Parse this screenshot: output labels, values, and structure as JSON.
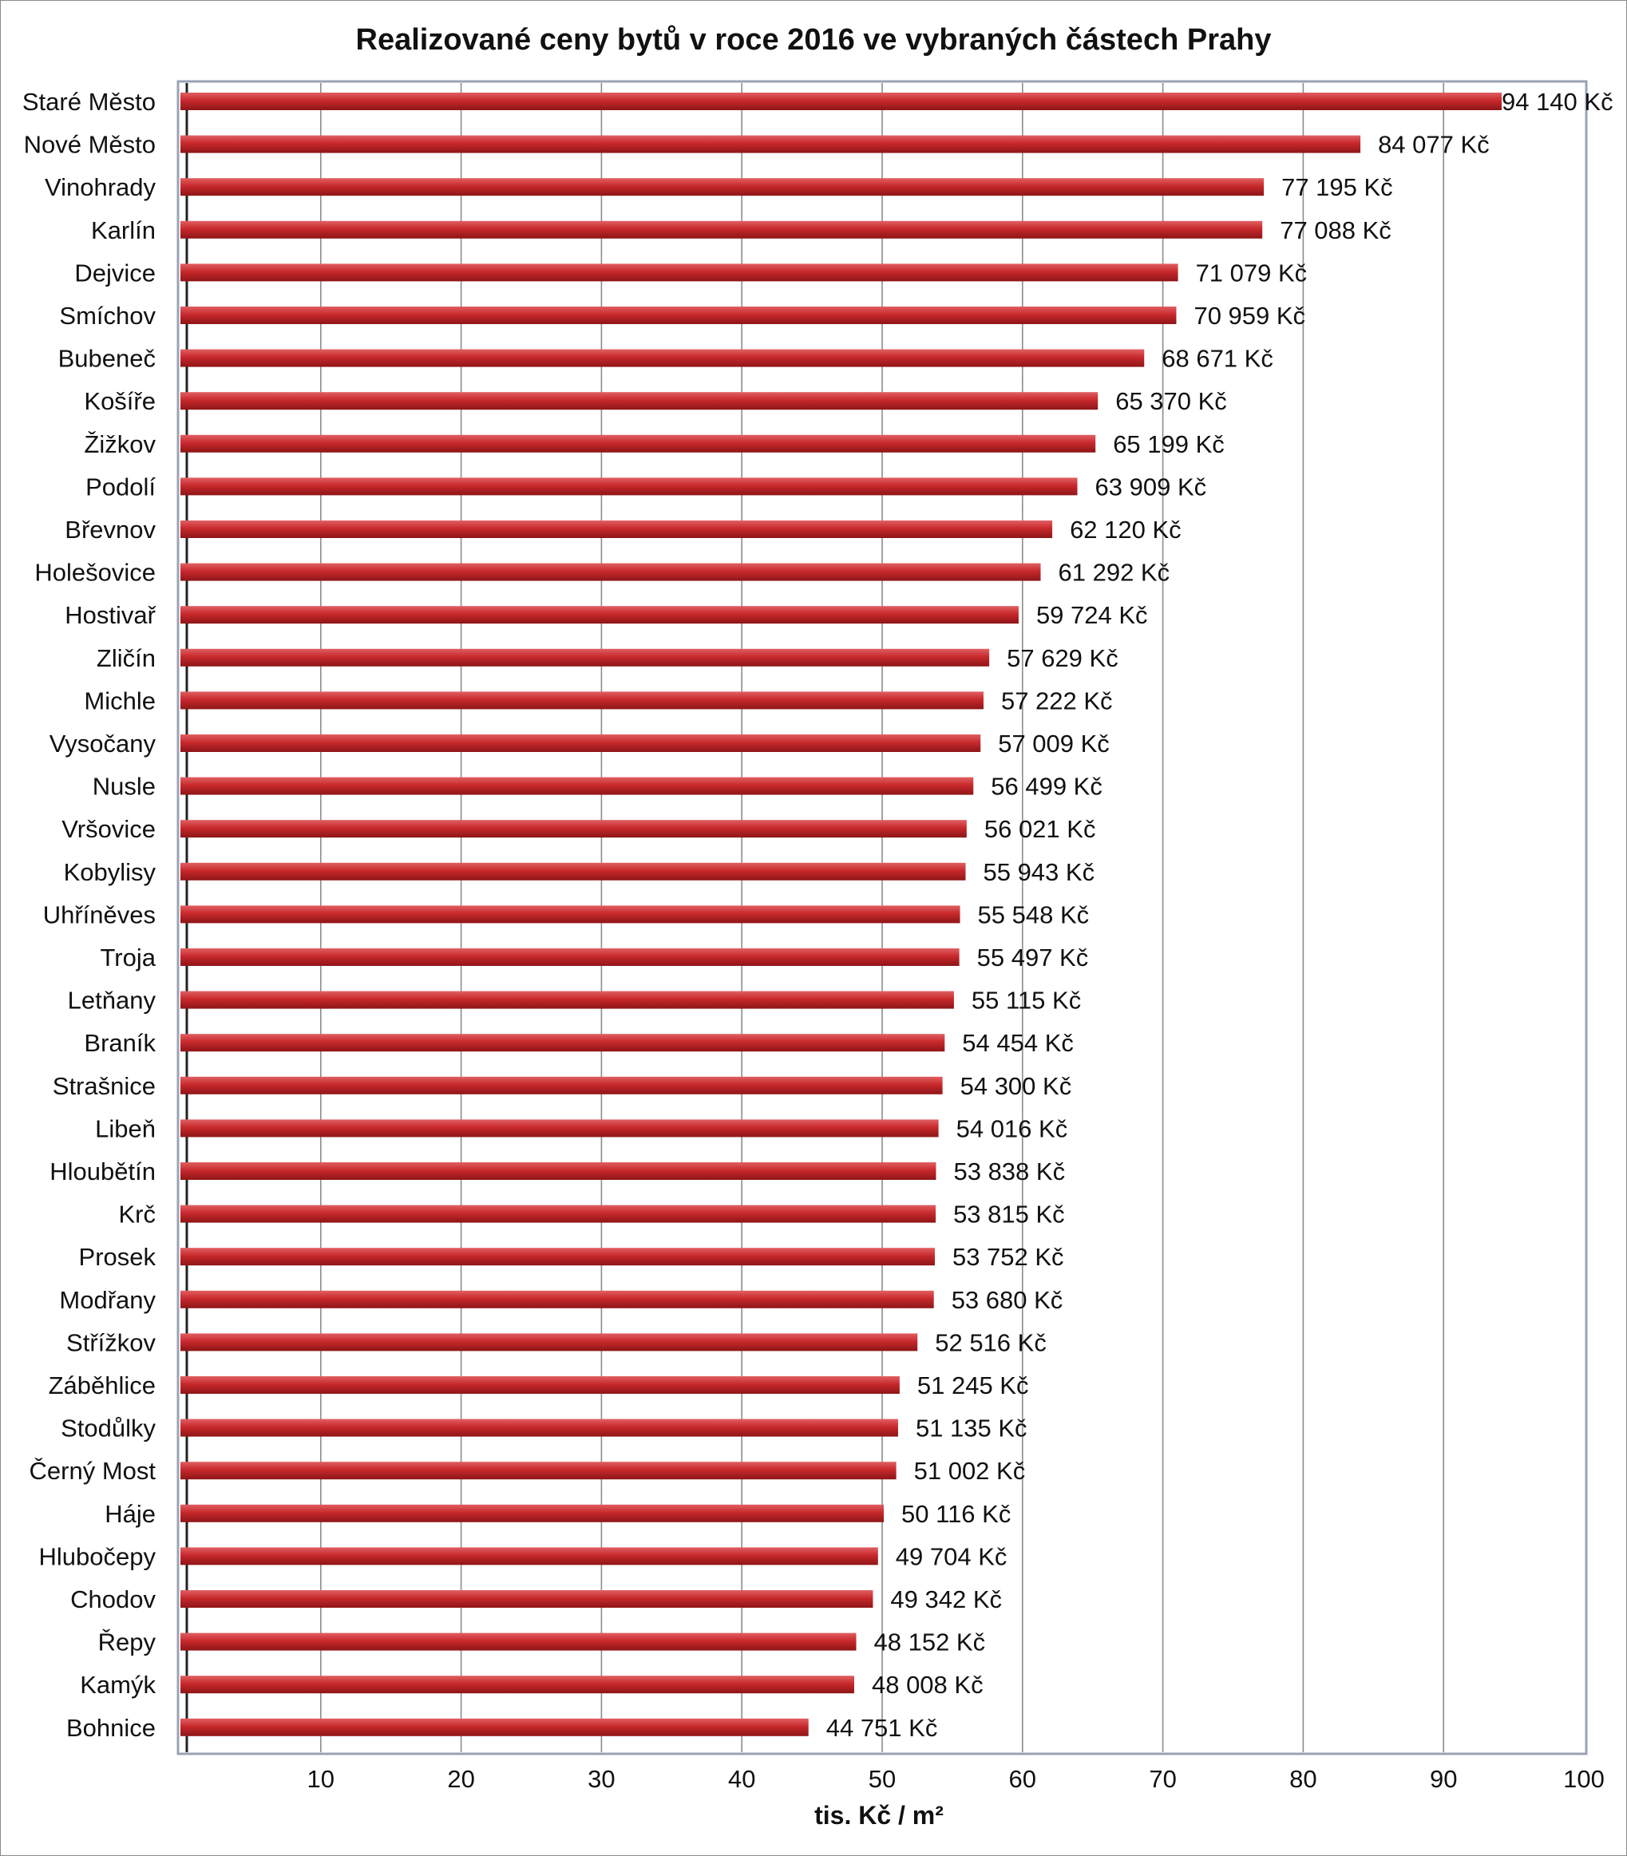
{
  "chart_data": {
    "type": "bar",
    "orientation": "horizontal",
    "title": "Realizované ceny bytů v roce 2016 ve vybraných částech Prahy",
    "xlabel": "tis. Kč / m²",
    "ylabel": "",
    "xlim": [
      0,
      100
    ],
    "x_ticks": [
      10,
      20,
      30,
      40,
      50,
      60,
      70,
      80,
      90,
      100
    ],
    "grid": "vertical",
    "bar_color": "#c0282b",
    "categories": [
      "Staré Město",
      "Nové Město",
      "Vinohrady",
      "Karlín",
      "Dejvice",
      "Smíchov",
      "Bubeneč",
      "Košíře",
      "Žižkov",
      "Podolí",
      "Břevnov",
      "Holešovice",
      "Hostivař",
      "Zličín",
      "Michle",
      "Vysočany",
      "Nusle",
      "Vršovice",
      "Kobylisy",
      "Uhříněves",
      "Troja",
      "Letňany",
      "Braník",
      "Strašnice",
      "Libeň",
      "Hloubětín",
      "Krč",
      "Prosek",
      "Modřany",
      "Střížkov",
      "Záběhlice",
      "Stodůlky",
      "Černý Most",
      "Háje",
      "Hlubočepy",
      "Chodov",
      "Řepy",
      "Kamýk",
      "Bohnice"
    ],
    "values": [
      94140,
      84077,
      77195,
      77088,
      71079,
      70959,
      68671,
      65370,
      65199,
      63909,
      62120,
      61292,
      59724,
      57629,
      57222,
      57009,
      56499,
      56021,
      55943,
      55548,
      55497,
      55115,
      54454,
      54300,
      54016,
      53838,
      53815,
      53752,
      53680,
      52516,
      51245,
      51135,
      51002,
      50116,
      49704,
      49342,
      48152,
      48008,
      44751
    ],
    "value_labels": [
      "94 140 Kč",
      "84 077 Kč",
      "77 195 Kč",
      "77 088 Kč",
      "71 079 Kč",
      "70 959 Kč",
      "68 671 Kč",
      "65 370 Kč",
      "65 199 Kč",
      "63 909 Kč",
      "62 120 Kč",
      "61 292 Kč",
      "59 724 Kč",
      "57 629 Kč",
      "57 222 Kč",
      "57 009 Kč",
      "56 499 Kč",
      "56 021 Kč",
      "55 943 Kč",
      "55 548 Kč",
      "55 497 Kč",
      "55 115 Kč",
      "54 454 Kč",
      "54 300 Kč",
      "54 016 Kč",
      "53 838 Kč",
      "53 815 Kč",
      "53 752 Kč",
      "53 680 Kč",
      "52 516 Kč",
      "51 245 Kč",
      "51 135 Kč",
      "51 002 Kč",
      "50 116 Kč",
      "49 704 Kč",
      "49 342 Kč",
      "48 152 Kč",
      "48 008 Kč",
      "44 751 Kč"
    ]
  }
}
